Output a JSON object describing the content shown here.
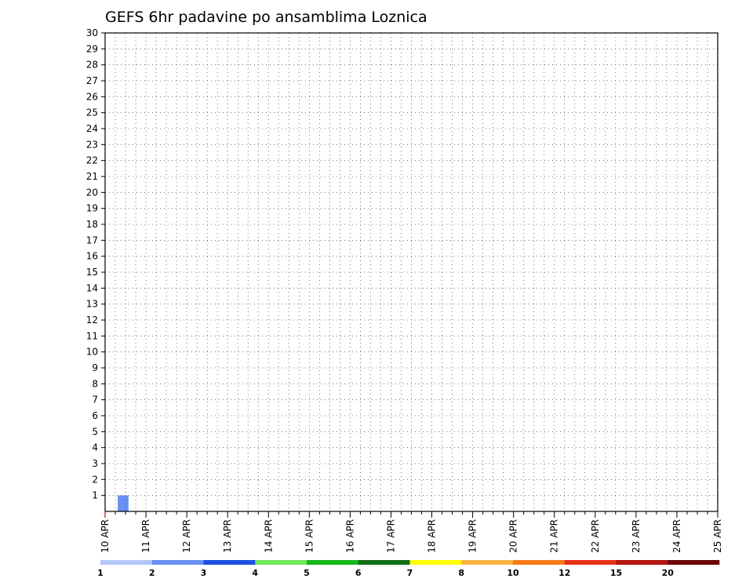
{
  "chart_data": {
    "type": "heatmap",
    "title": "GEFS 6hr padavine po ansamblima Loznica",
    "xlabel": "",
    "ylabel": "",
    "x_tick_labels": [
      "10 APR",
      "11 APR",
      "12 APR",
      "13 APR",
      "14 APR",
      "15 APR",
      "16 APR",
      "17 APR",
      "18 APR",
      "19 APR",
      "20 APR",
      "21 APR",
      "22 APR",
      "23 APR",
      "24 APR",
      "25 APR"
    ],
    "y_tick_labels": [
      "1",
      "2",
      "3",
      "4",
      "5",
      "6",
      "7",
      "8",
      "9",
      "10",
      "11",
      "12",
      "13",
      "14",
      "15",
      "16",
      "17",
      "18",
      "19",
      "20",
      "21",
      "22",
      "23",
      "24",
      "25",
      "26",
      "27",
      "28",
      "29",
      "30"
    ],
    "xlim": [
      0,
      60
    ],
    "ylim": [
      0,
      30
    ],
    "grid": true,
    "colorbar": {
      "labels": [
        "1",
        "2",
        "3",
        "4",
        "5",
        "6",
        "7",
        "8",
        "10",
        "12",
        "15",
        "20"
      ],
      "colors": [
        "#b4c8f8",
        "#6891f2",
        "#1f4fe0",
        "#71e65a",
        "#18b818",
        "#0f6e16",
        "#ffff00",
        "#fdb245",
        "#f97b17",
        "#e33217",
        "#b2160e",
        "#6b0707"
      ]
    },
    "cells": [
      {
        "x": 1.25,
        "y": 0,
        "v": 2
      },
      {
        "x": 1.25,
        "y": 0,
        "v": 2
      }
    ]
  }
}
